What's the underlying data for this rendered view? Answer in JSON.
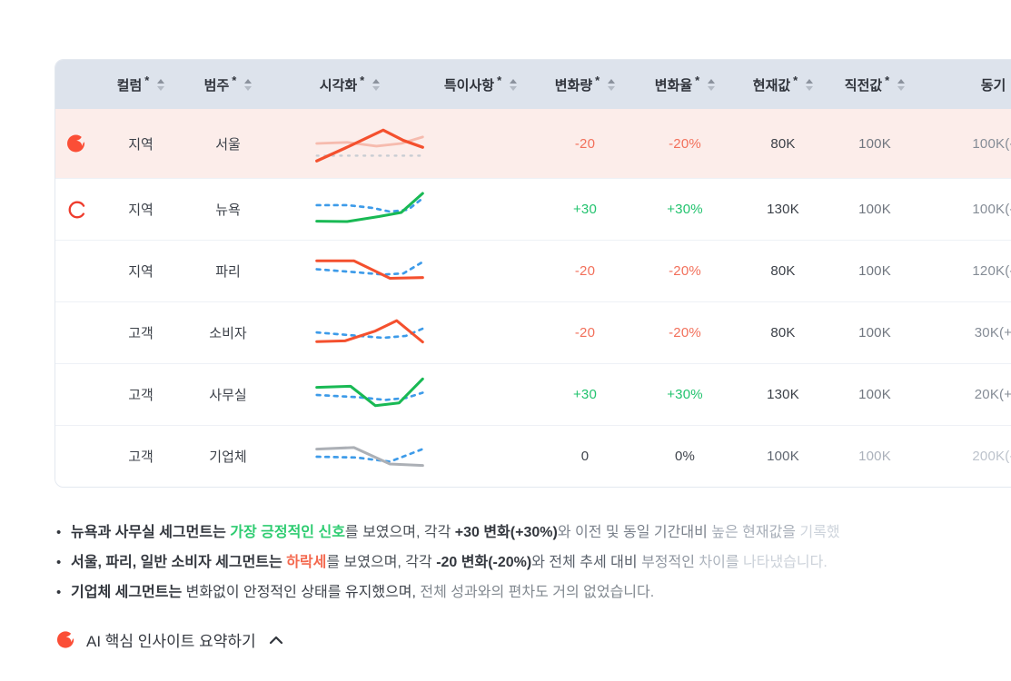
{
  "colors": {
    "accent_red": "#F4502E",
    "positive": "#22C36E",
    "negative": "#F2705B",
    "line_blue": "#3D9BE9",
    "line_pink": "#F6BBAE",
    "line_gray": "#ACB0B6",
    "header_bg": "#DDE3EC",
    "highlight_row_bg": "#FCEDEA"
  },
  "table": {
    "columns": [
      {
        "label": "",
        "mark": ""
      },
      {
        "label": "컬럼",
        "mark": "*"
      },
      {
        "label": "범주",
        "mark": "*"
      },
      {
        "label": "시각화",
        "mark": "*"
      },
      {
        "label": "특이사항",
        "mark": "*"
      },
      {
        "label": "변화량",
        "mark": "*"
      },
      {
        "label": "변화율",
        "mark": "*"
      },
      {
        "label": "현재값",
        "mark": "*"
      },
      {
        "label": "직전값",
        "mark": "*"
      },
      {
        "label": "동기",
        "mark": ""
      }
    ],
    "rows": [
      {
        "icon": "ai-sparkle",
        "highlight": true,
        "column": "지역",
        "category": "서울",
        "note": "",
        "change": "-20",
        "change_tone": "neg",
        "rate": "-20%",
        "current": "80K",
        "prev": "100K",
        "period": "100K(-",
        "spark": {
          "series": [
            {
              "color": "#C9CDD3",
              "width": 2.4,
              "dash": "2 7",
              "points": [
                [
                  3,
                  82
                ],
                [
                  97,
                  82
                ]
              ]
            },
            {
              "color": "#F6BBAE",
              "width": 3,
              "points": [
                [
                  3,
                  50
                ],
                [
                  30,
                  47
                ],
                [
                  56,
                  57
                ],
                [
                  78,
                  50
                ],
                [
                  97,
                  33
                ]
              ]
            },
            {
              "color": "#F4502E",
              "width": 3.4,
              "points": [
                [
                  3,
                  96
                ],
                [
                  32,
                  57
                ],
                [
                  62,
                  15
                ],
                [
                  80,
                  42
                ],
                [
                  97,
                  60
                ]
              ]
            }
          ]
        }
      },
      {
        "icon": "spinner",
        "highlight": false,
        "column": "지역",
        "category": "뉴욕",
        "note": "",
        "change": "+30",
        "change_tone": "pos",
        "rate": "+30%",
        "current": "130K",
        "prev": "100K",
        "period": "100K(-",
        "spark": {
          "series": [
            {
              "color": "#3D9BE9",
              "width": 2.8,
              "dash": "4 6",
              "points": [
                [
                  3,
                  38
                ],
                [
                  30,
                  38
                ],
                [
                  52,
                  45
                ],
                [
                  68,
                  55
                ],
                [
                  84,
                  50
                ],
                [
                  97,
                  20
                ]
              ]
            },
            {
              "color": "#19B954",
              "width": 3.2,
              "points": [
                [
                  3,
                  80
                ],
                [
                  30,
                  81
                ],
                [
                  58,
                  68
                ],
                [
                  78,
                  57
                ],
                [
                  97,
                  7
                ]
              ]
            }
          ]
        }
      },
      {
        "icon": "",
        "highlight": false,
        "column": "지역",
        "category": "파리",
        "note": "",
        "change": "-20",
        "change_tone": "neg",
        "rate": "-20%",
        "current": "80K",
        "prev": "100K",
        "period": "120K(-",
        "spark": {
          "series": [
            {
              "color": "#3D9BE9",
              "width": 2.8,
              "dash": "4 6",
              "points": [
                [
                  3,
                  44
                ],
                [
                  38,
                  52
                ],
                [
                  62,
                  58
                ],
                [
                  80,
                  55
                ],
                [
                  97,
                  25
                ]
              ]
            },
            {
              "color": "#F4502E",
              "width": 3.2,
              "points": [
                [
                  3,
                  22
                ],
                [
                  36,
                  22
                ],
                [
                  68,
                  68
                ],
                [
                  97,
                  66
                ]
              ]
            }
          ]
        }
      },
      {
        "icon": "",
        "highlight": false,
        "column": "고객",
        "category": "소비자",
        "note": "",
        "change": "-20",
        "change_tone": "neg",
        "rate": "-20%",
        "current": "80K",
        "prev": "100K",
        "period": "30K(+",
        "spark": {
          "series": [
            {
              "color": "#3D9BE9",
              "width": 2.8,
              "dash": "4 6",
              "points": [
                [
                  3,
                  48
                ],
                [
                  36,
                  56
                ],
                [
                  62,
                  62
                ],
                [
                  82,
                  57
                ],
                [
                  97,
                  38
                ]
              ]
            },
            {
              "color": "#F4502E",
              "width": 3.2,
              "points": [
                [
                  3,
                  72
                ],
                [
                  28,
                  70
                ],
                [
                  55,
                  44
                ],
                [
                  74,
                  17
                ],
                [
                  97,
                  73
                ]
              ]
            }
          ]
        }
      },
      {
        "icon": "",
        "highlight": false,
        "column": "고객",
        "category": "사무실",
        "note": "",
        "change": "+30",
        "change_tone": "pos",
        "rate": "+30%",
        "current": "130K",
        "prev": "100K",
        "period": "20K(+",
        "spark": {
          "series": [
            {
              "color": "#3D9BE9",
              "width": 2.8,
              "dash": "4 6",
              "points": [
                [
                  3,
                  50
                ],
                [
                  40,
                  56
                ],
                [
                  64,
                  63
                ],
                [
                  82,
                  58
                ],
                [
                  97,
                  44
                ]
              ]
            },
            {
              "color": "#19B954",
              "width": 3.2,
              "points": [
                [
                  3,
                  30
                ],
                [
                  33,
                  27
                ],
                [
                  55,
                  78
                ],
                [
                  76,
                  71
                ],
                [
                  97,
                  8
                ]
              ]
            }
          ]
        }
      },
      {
        "icon": "",
        "highlight": false,
        "muted": true,
        "column": "고객",
        "category": "기업체",
        "note": "",
        "change": "0",
        "change_tone": "zero",
        "rate": "0%",
        "current": "100K",
        "prev": "100K",
        "period": "200K(-",
        "spark": {
          "series": [
            {
              "color": "#3D9BE9",
              "width": 2.8,
              "dash": "4 6",
              "points": [
                [
                  3,
                  50
                ],
                [
                  38,
                  52
                ],
                [
                  68,
                  63
                ],
                [
                  97,
                  30
                ]
              ]
            },
            {
              "color": "#ACB0B6",
              "width": 3.2,
              "points": [
                [
                  3,
                  30
                ],
                [
                  36,
                  26
                ],
                [
                  68,
                  69
                ],
                [
                  97,
                  73
                ]
              ]
            }
          ]
        }
      }
    ]
  },
  "insights": [
    {
      "segments": [
        {
          "text": "뉴욕과 사무실 세그먼트는 ",
          "bold": true,
          "color": "#33373E"
        },
        {
          "text": "가장 긍정적인 신호",
          "bold": true,
          "color": "#2ECC71"
        },
        {
          "text": "를 보였으며, 각각 ",
          "color": "#4B5158"
        },
        {
          "text": "+30 변화(+30%)",
          "bold": true,
          "color": "#33373E"
        },
        {
          "text": "와 이전 및 동일 기간대비 ",
          "color": "#7B828C"
        },
        {
          "text": "높은 현재값을 ",
          "color": "#A7AEB8"
        },
        {
          "text": "기록했",
          "color": "#CED4DC"
        }
      ]
    },
    {
      "segments": [
        {
          "text": "서울, 파리, 일반 소비자 세그먼트는 ",
          "bold": true,
          "color": "#33373E"
        },
        {
          "text": "하락세",
          "bold": true,
          "color": "#F4694F"
        },
        {
          "text": "를 보였으며, 각각 ",
          "color": "#4B5158"
        },
        {
          "text": "-20 변화(-20%)",
          "bold": true,
          "color": "#33373E"
        },
        {
          "text": "와 전체 추세 대비 ",
          "color": "#5A616B"
        },
        {
          "text": "부정적인 ",
          "color": "#8F96A0"
        },
        {
          "text": "차이를 ",
          "color": "#ADB4BE"
        },
        {
          "text": "나타냈습니다.",
          "color": "#CBD1D9"
        }
      ]
    },
    {
      "segments": [
        {
          "text": "기업체 세그먼트는",
          "bold": true,
          "color": "#33373E"
        },
        {
          "text": " 변화없이 안정적인 상태를 유지했으며, ",
          "color": "#3F444C"
        },
        {
          "text": "전체 성과와의 편차도 거의 없었습니다.",
          "color": "#81888F"
        }
      ]
    }
  ],
  "footer": {
    "label": "AI 핵심 인사이트 요약하기"
  }
}
